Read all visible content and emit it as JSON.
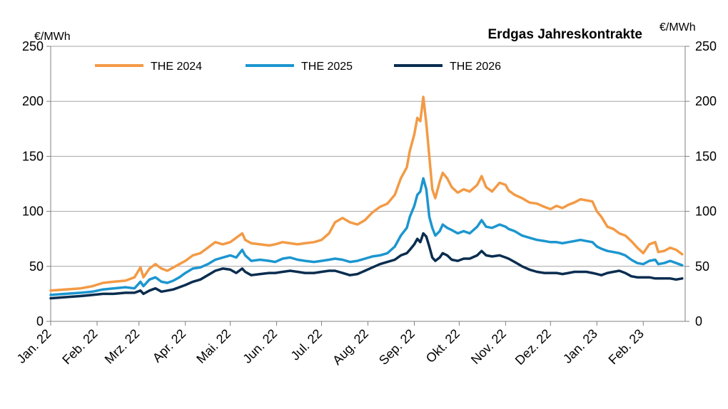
{
  "chart_data": {
    "type": "line",
    "title": "Erdgas Jahreskontrakte",
    "ylabel_left": "€/MWh",
    "ylabel_right": "€/MWh",
    "ylim": [
      0,
      250
    ],
    "yticks": [
      0,
      50,
      100,
      150,
      200,
      250
    ],
    "xlim": [
      0,
      424
    ],
    "categories": [
      "Jan. 22",
      "Feb. 22",
      "Mrz. 22",
      "Apr. 22",
      "Mai. 22",
      "Jun. 22",
      "Jul. 22",
      "Aug. 22",
      "Sep. 22",
      "Okt. 22",
      "Nov. 22",
      "Dez. 22",
      "Jan. 23",
      "Feb. 23"
    ],
    "category_day_offsets": [
      0,
      31,
      59,
      90,
      120,
      151,
      181,
      212,
      243,
      273,
      304,
      334,
      365,
      396
    ],
    "grid": "horizontal",
    "legend_position": "top",
    "series": [
      {
        "name": "THE 2024",
        "color": "#F39A45",
        "points": [
          [
            0,
            28
          ],
          [
            10,
            29
          ],
          [
            20,
            30
          ],
          [
            28,
            32
          ],
          [
            35,
            35
          ],
          [
            42,
            36
          ],
          [
            50,
            37
          ],
          [
            56,
            40
          ],
          [
            60,
            49
          ],
          [
            62,
            40
          ],
          [
            66,
            48
          ],
          [
            70,
            52
          ],
          [
            74,
            48
          ],
          [
            78,
            46
          ],
          [
            82,
            49
          ],
          [
            86,
            52
          ],
          [
            90,
            55
          ],
          [
            95,
            60
          ],
          [
            100,
            62
          ],
          [
            105,
            67
          ],
          [
            110,
            72
          ],
          [
            115,
            70
          ],
          [
            120,
            72
          ],
          [
            124,
            76
          ],
          [
            128,
            80
          ],
          [
            130,
            74
          ],
          [
            134,
            71
          ],
          [
            140,
            70
          ],
          [
            146,
            69
          ],
          [
            150,
            70
          ],
          [
            155,
            72
          ],
          [
            160,
            71
          ],
          [
            165,
            70
          ],
          [
            170,
            71
          ],
          [
            176,
            72
          ],
          [
            181,
            74
          ],
          [
            186,
            80
          ],
          [
            190,
            90
          ],
          [
            195,
            94
          ],
          [
            200,
            90
          ],
          [
            205,
            88
          ],
          [
            210,
            92
          ],
          [
            215,
            99
          ],
          [
            220,
            104
          ],
          [
            225,
            107
          ],
          [
            230,
            115
          ],
          [
            234,
            130
          ],
          [
            238,
            140
          ],
          [
            240,
            155
          ],
          [
            243,
            170
          ],
          [
            245,
            185
          ],
          [
            247,
            182
          ],
          [
            249,
            204
          ],
          [
            251,
            180
          ],
          [
            253,
            150
          ],
          [
            255,
            120
          ],
          [
            257,
            112
          ],
          [
            260,
            127
          ],
          [
            262,
            135
          ],
          [
            265,
            130
          ],
          [
            268,
            122
          ],
          [
            272,
            117
          ],
          [
            276,
            120
          ],
          [
            280,
            118
          ],
          [
            285,
            124
          ],
          [
            288,
            132
          ],
          [
            291,
            122
          ],
          [
            295,
            118
          ],
          [
            300,
            126
          ],
          [
            304,
            124
          ],
          [
            306,
            119
          ],
          [
            310,
            115
          ],
          [
            315,
            112
          ],
          [
            320,
            108
          ],
          [
            325,
            107
          ],
          [
            330,
            104
          ],
          [
            334,
            102
          ],
          [
            338,
            105
          ],
          [
            342,
            103
          ],
          [
            346,
            106
          ],
          [
            350,
            108
          ],
          [
            354,
            111
          ],
          [
            358,
            110
          ],
          [
            362,
            109
          ],
          [
            365,
            100
          ],
          [
            368,
            95
          ],
          [
            372,
            86
          ],
          [
            376,
            84
          ],
          [
            380,
            80
          ],
          [
            384,
            78
          ],
          [
            388,
            73
          ],
          [
            392,
            67
          ],
          [
            396,
            62
          ],
          [
            400,
            70
          ],
          [
            404,
            72
          ],
          [
            406,
            63
          ],
          [
            410,
            64
          ],
          [
            414,
            67
          ],
          [
            418,
            65
          ],
          [
            422,
            61
          ]
        ]
      },
      {
        "name": "THE 2025",
        "color": "#1C96CF",
        "points": [
          [
            0,
            24
          ],
          [
            10,
            25
          ],
          [
            20,
            26
          ],
          [
            28,
            27
          ],
          [
            35,
            29
          ],
          [
            42,
            30
          ],
          [
            50,
            31
          ],
          [
            56,
            30
          ],
          [
            60,
            36
          ],
          [
            62,
            32
          ],
          [
            66,
            38
          ],
          [
            70,
            40
          ],
          [
            74,
            36
          ],
          [
            78,
            35
          ],
          [
            82,
            37
          ],
          [
            86,
            40
          ],
          [
            90,
            44
          ],
          [
            95,
            48
          ],
          [
            100,
            49
          ],
          [
            105,
            52
          ],
          [
            110,
            56
          ],
          [
            115,
            58
          ],
          [
            120,
            60
          ],
          [
            124,
            58
          ],
          [
            128,
            65
          ],
          [
            130,
            60
          ],
          [
            134,
            55
          ],
          [
            140,
            56
          ],
          [
            146,
            55
          ],
          [
            150,
            54
          ],
          [
            155,
            57
          ],
          [
            160,
            58
          ],
          [
            165,
            56
          ],
          [
            170,
            55
          ],
          [
            176,
            54
          ],
          [
            181,
            55
          ],
          [
            186,
            56
          ],
          [
            190,
            57
          ],
          [
            195,
            56
          ],
          [
            200,
            54
          ],
          [
            205,
            55
          ],
          [
            210,
            57
          ],
          [
            215,
            59
          ],
          [
            220,
            60
          ],
          [
            225,
            62
          ],
          [
            230,
            68
          ],
          [
            234,
            78
          ],
          [
            238,
            85
          ],
          [
            240,
            95
          ],
          [
            243,
            105
          ],
          [
            245,
            115
          ],
          [
            247,
            118
          ],
          [
            249,
            130
          ],
          [
            251,
            120
          ],
          [
            253,
            95
          ],
          [
            255,
            85
          ],
          [
            257,
            78
          ],
          [
            260,
            82
          ],
          [
            262,
            88
          ],
          [
            265,
            85
          ],
          [
            268,
            83
          ],
          [
            272,
            80
          ],
          [
            276,
            82
          ],
          [
            280,
            80
          ],
          [
            285,
            86
          ],
          [
            288,
            92
          ],
          [
            291,
            86
          ],
          [
            295,
            85
          ],
          [
            300,
            88
          ],
          [
            304,
            86
          ],
          [
            306,
            84
          ],
          [
            310,
            82
          ],
          [
            315,
            78
          ],
          [
            320,
            76
          ],
          [
            325,
            74
          ],
          [
            330,
            73
          ],
          [
            334,
            72
          ],
          [
            338,
            72
          ],
          [
            342,
            71
          ],
          [
            346,
            72
          ],
          [
            350,
            73
          ],
          [
            354,
            74
          ],
          [
            358,
            73
          ],
          [
            362,
            72
          ],
          [
            365,
            68
          ],
          [
            368,
            66
          ],
          [
            372,
            64
          ],
          [
            376,
            63
          ],
          [
            380,
            62
          ],
          [
            384,
            60
          ],
          [
            388,
            56
          ],
          [
            392,
            53
          ],
          [
            396,
            52
          ],
          [
            400,
            55
          ],
          [
            404,
            56
          ],
          [
            406,
            52
          ],
          [
            410,
            53
          ],
          [
            414,
            55
          ],
          [
            418,
            53
          ],
          [
            422,
            51
          ]
        ]
      },
      {
        "name": "THE 2026",
        "color": "#0A2D4F",
        "points": [
          [
            0,
            21
          ],
          [
            10,
            22
          ],
          [
            20,
            23
          ],
          [
            28,
            24
          ],
          [
            35,
            25
          ],
          [
            42,
            25
          ],
          [
            50,
            26
          ],
          [
            56,
            26
          ],
          [
            60,
            28
          ],
          [
            62,
            25
          ],
          [
            66,
            28
          ],
          [
            70,
            30
          ],
          [
            74,
            27
          ],
          [
            78,
            28
          ],
          [
            82,
            29
          ],
          [
            86,
            31
          ],
          [
            90,
            33
          ],
          [
            95,
            36
          ],
          [
            100,
            38
          ],
          [
            105,
            42
          ],
          [
            110,
            46
          ],
          [
            115,
            48
          ],
          [
            120,
            47
          ],
          [
            124,
            44
          ],
          [
            128,
            48
          ],
          [
            130,
            45
          ],
          [
            134,
            42
          ],
          [
            140,
            43
          ],
          [
            146,
            44
          ],
          [
            150,
            44
          ],
          [
            155,
            45
          ],
          [
            160,
            46
          ],
          [
            165,
            45
          ],
          [
            170,
            44
          ],
          [
            176,
            44
          ],
          [
            181,
            45
          ],
          [
            186,
            46
          ],
          [
            190,
            46
          ],
          [
            195,
            44
          ],
          [
            200,
            42
          ],
          [
            205,
            43
          ],
          [
            210,
            46
          ],
          [
            215,
            49
          ],
          [
            220,
            52
          ],
          [
            225,
            54
          ],
          [
            230,
            56
          ],
          [
            234,
            60
          ],
          [
            238,
            62
          ],
          [
            240,
            65
          ],
          [
            243,
            70
          ],
          [
            245,
            75
          ],
          [
            247,
            72
          ],
          [
            249,
            80
          ],
          [
            251,
            77
          ],
          [
            253,
            68
          ],
          [
            255,
            58
          ],
          [
            257,
            55
          ],
          [
            260,
            58
          ],
          [
            262,
            62
          ],
          [
            265,
            60
          ],
          [
            268,
            56
          ],
          [
            272,
            55
          ],
          [
            276,
            57
          ],
          [
            280,
            57
          ],
          [
            285,
            60
          ],
          [
            288,
            64
          ],
          [
            291,
            60
          ],
          [
            295,
            59
          ],
          [
            300,
            60
          ],
          [
            304,
            58
          ],
          [
            306,
            57
          ],
          [
            310,
            54
          ],
          [
            315,
            50
          ],
          [
            320,
            47
          ],
          [
            325,
            45
          ],
          [
            330,
            44
          ],
          [
            334,
            44
          ],
          [
            338,
            44
          ],
          [
            342,
            43
          ],
          [
            346,
            44
          ],
          [
            350,
            45
          ],
          [
            354,
            45
          ],
          [
            358,
            45
          ],
          [
            362,
            44
          ],
          [
            365,
            43
          ],
          [
            368,
            42
          ],
          [
            372,
            44
          ],
          [
            376,
            45
          ],
          [
            380,
            46
          ],
          [
            384,
            44
          ],
          [
            388,
            41
          ],
          [
            392,
            40
          ],
          [
            396,
            40
          ],
          [
            400,
            40
          ],
          [
            404,
            39
          ],
          [
            406,
            39
          ],
          [
            410,
            39
          ],
          [
            414,
            39
          ],
          [
            418,
            38
          ],
          [
            422,
            39
          ]
        ]
      }
    ]
  }
}
